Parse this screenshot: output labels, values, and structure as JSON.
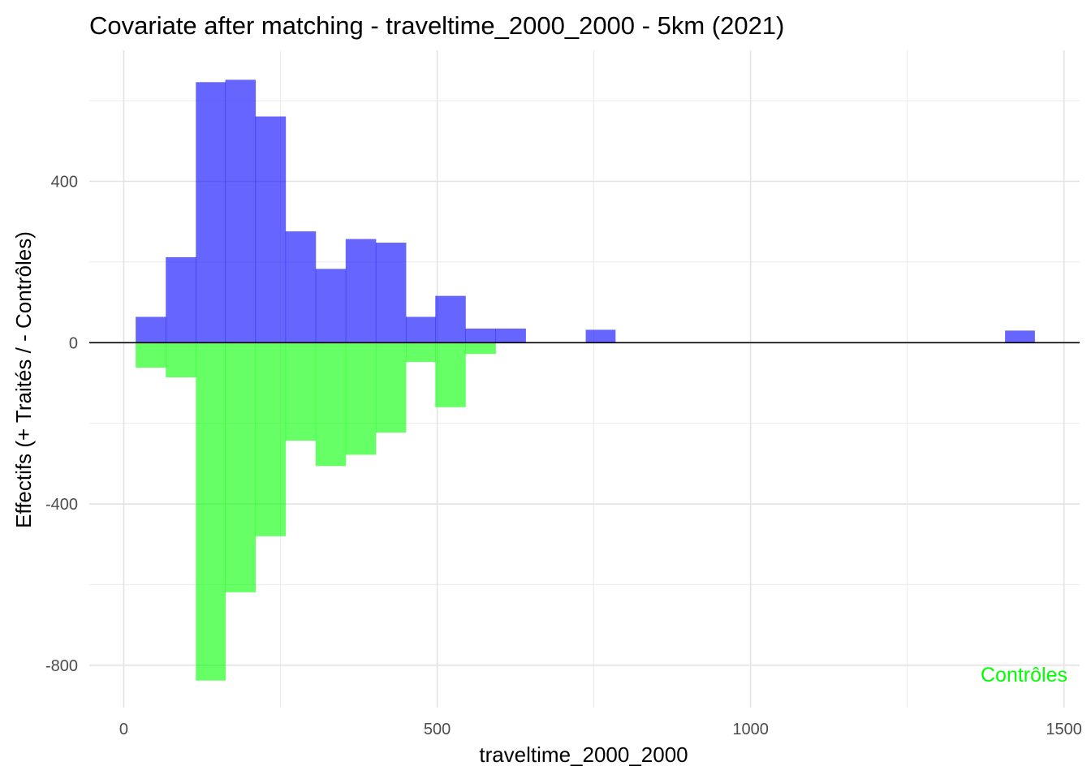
{
  "chart_data": {
    "type": "bar",
    "title": "Covariate after matching - traveltime_2000_2000 - 5km (2021)",
    "xlabel": "traveltime_2000_2000",
    "ylabel": "Effectifs (+ Traités / - Contrôles)",
    "xlim": [
      -55,
      1525
    ],
    "ylim": [
      -905,
      725
    ],
    "x_ticks": [
      0,
      500,
      1000,
      1500
    ],
    "x_tick_labels": [
      "0",
      "500",
      "1000",
      "1500"
    ],
    "y_ticks": [
      -800,
      -400,
      0,
      400
    ],
    "y_tick_labels": [
      "-800",
      "-400",
      "0",
      "400"
    ],
    "grid": true,
    "zero_line": true,
    "bin_width": 47.8,
    "series": [
      {
        "name": "Traités",
        "color": "#0000ff",
        "opacity": 0.6,
        "bins": [
          {
            "x0": 19,
            "x1": 67,
            "value": 64
          },
          {
            "x0": 67,
            "x1": 115,
            "value": 212
          },
          {
            "x0": 115,
            "x1": 162,
            "value": 646
          },
          {
            "x0": 162,
            "x1": 210,
            "value": 652
          },
          {
            "x0": 210,
            "x1": 258,
            "value": 561
          },
          {
            "x0": 258,
            "x1": 306,
            "value": 276
          },
          {
            "x0": 306,
            "x1": 354,
            "value": 183
          },
          {
            "x0": 354,
            "x1": 402,
            "value": 257
          },
          {
            "x0": 402,
            "x1": 450,
            "value": 248
          },
          {
            "x0": 450,
            "x1": 497,
            "value": 64
          },
          {
            "x0": 497,
            "x1": 545,
            "value": 116
          },
          {
            "x0": 545,
            "x1": 593,
            "value": 35
          },
          {
            "x0": 593,
            "x1": 641,
            "value": 35
          },
          {
            "x0": 737,
            "x1": 784,
            "value": 32
          },
          {
            "x0": 1406,
            "x1": 1453,
            "value": 30
          }
        ]
      },
      {
        "name": "Contrôles",
        "color": "#00ff00",
        "opacity": 0.6,
        "bins": [
          {
            "x0": 19,
            "x1": 67,
            "value": -62
          },
          {
            "x0": 67,
            "x1": 115,
            "value": -86
          },
          {
            "x0": 115,
            "x1": 162,
            "value": -838
          },
          {
            "x0": 162,
            "x1": 210,
            "value": -619
          },
          {
            "x0": 210,
            "x1": 258,
            "value": -480
          },
          {
            "x0": 258,
            "x1": 306,
            "value": -243
          },
          {
            "x0": 306,
            "x1": 354,
            "value": -306
          },
          {
            "x0": 354,
            "x1": 402,
            "value": -278
          },
          {
            "x0": 402,
            "x1": 450,
            "value": -223
          },
          {
            "x0": 450,
            "x1": 497,
            "value": -48
          },
          {
            "x0": 497,
            "x1": 545,
            "value": -160
          },
          {
            "x0": 545,
            "x1": 593,
            "value": -28
          }
        ]
      }
    ],
    "annotations": [
      {
        "text": "Contrôles",
        "color": "#00ff00",
        "position": "bottom-right"
      }
    ]
  }
}
